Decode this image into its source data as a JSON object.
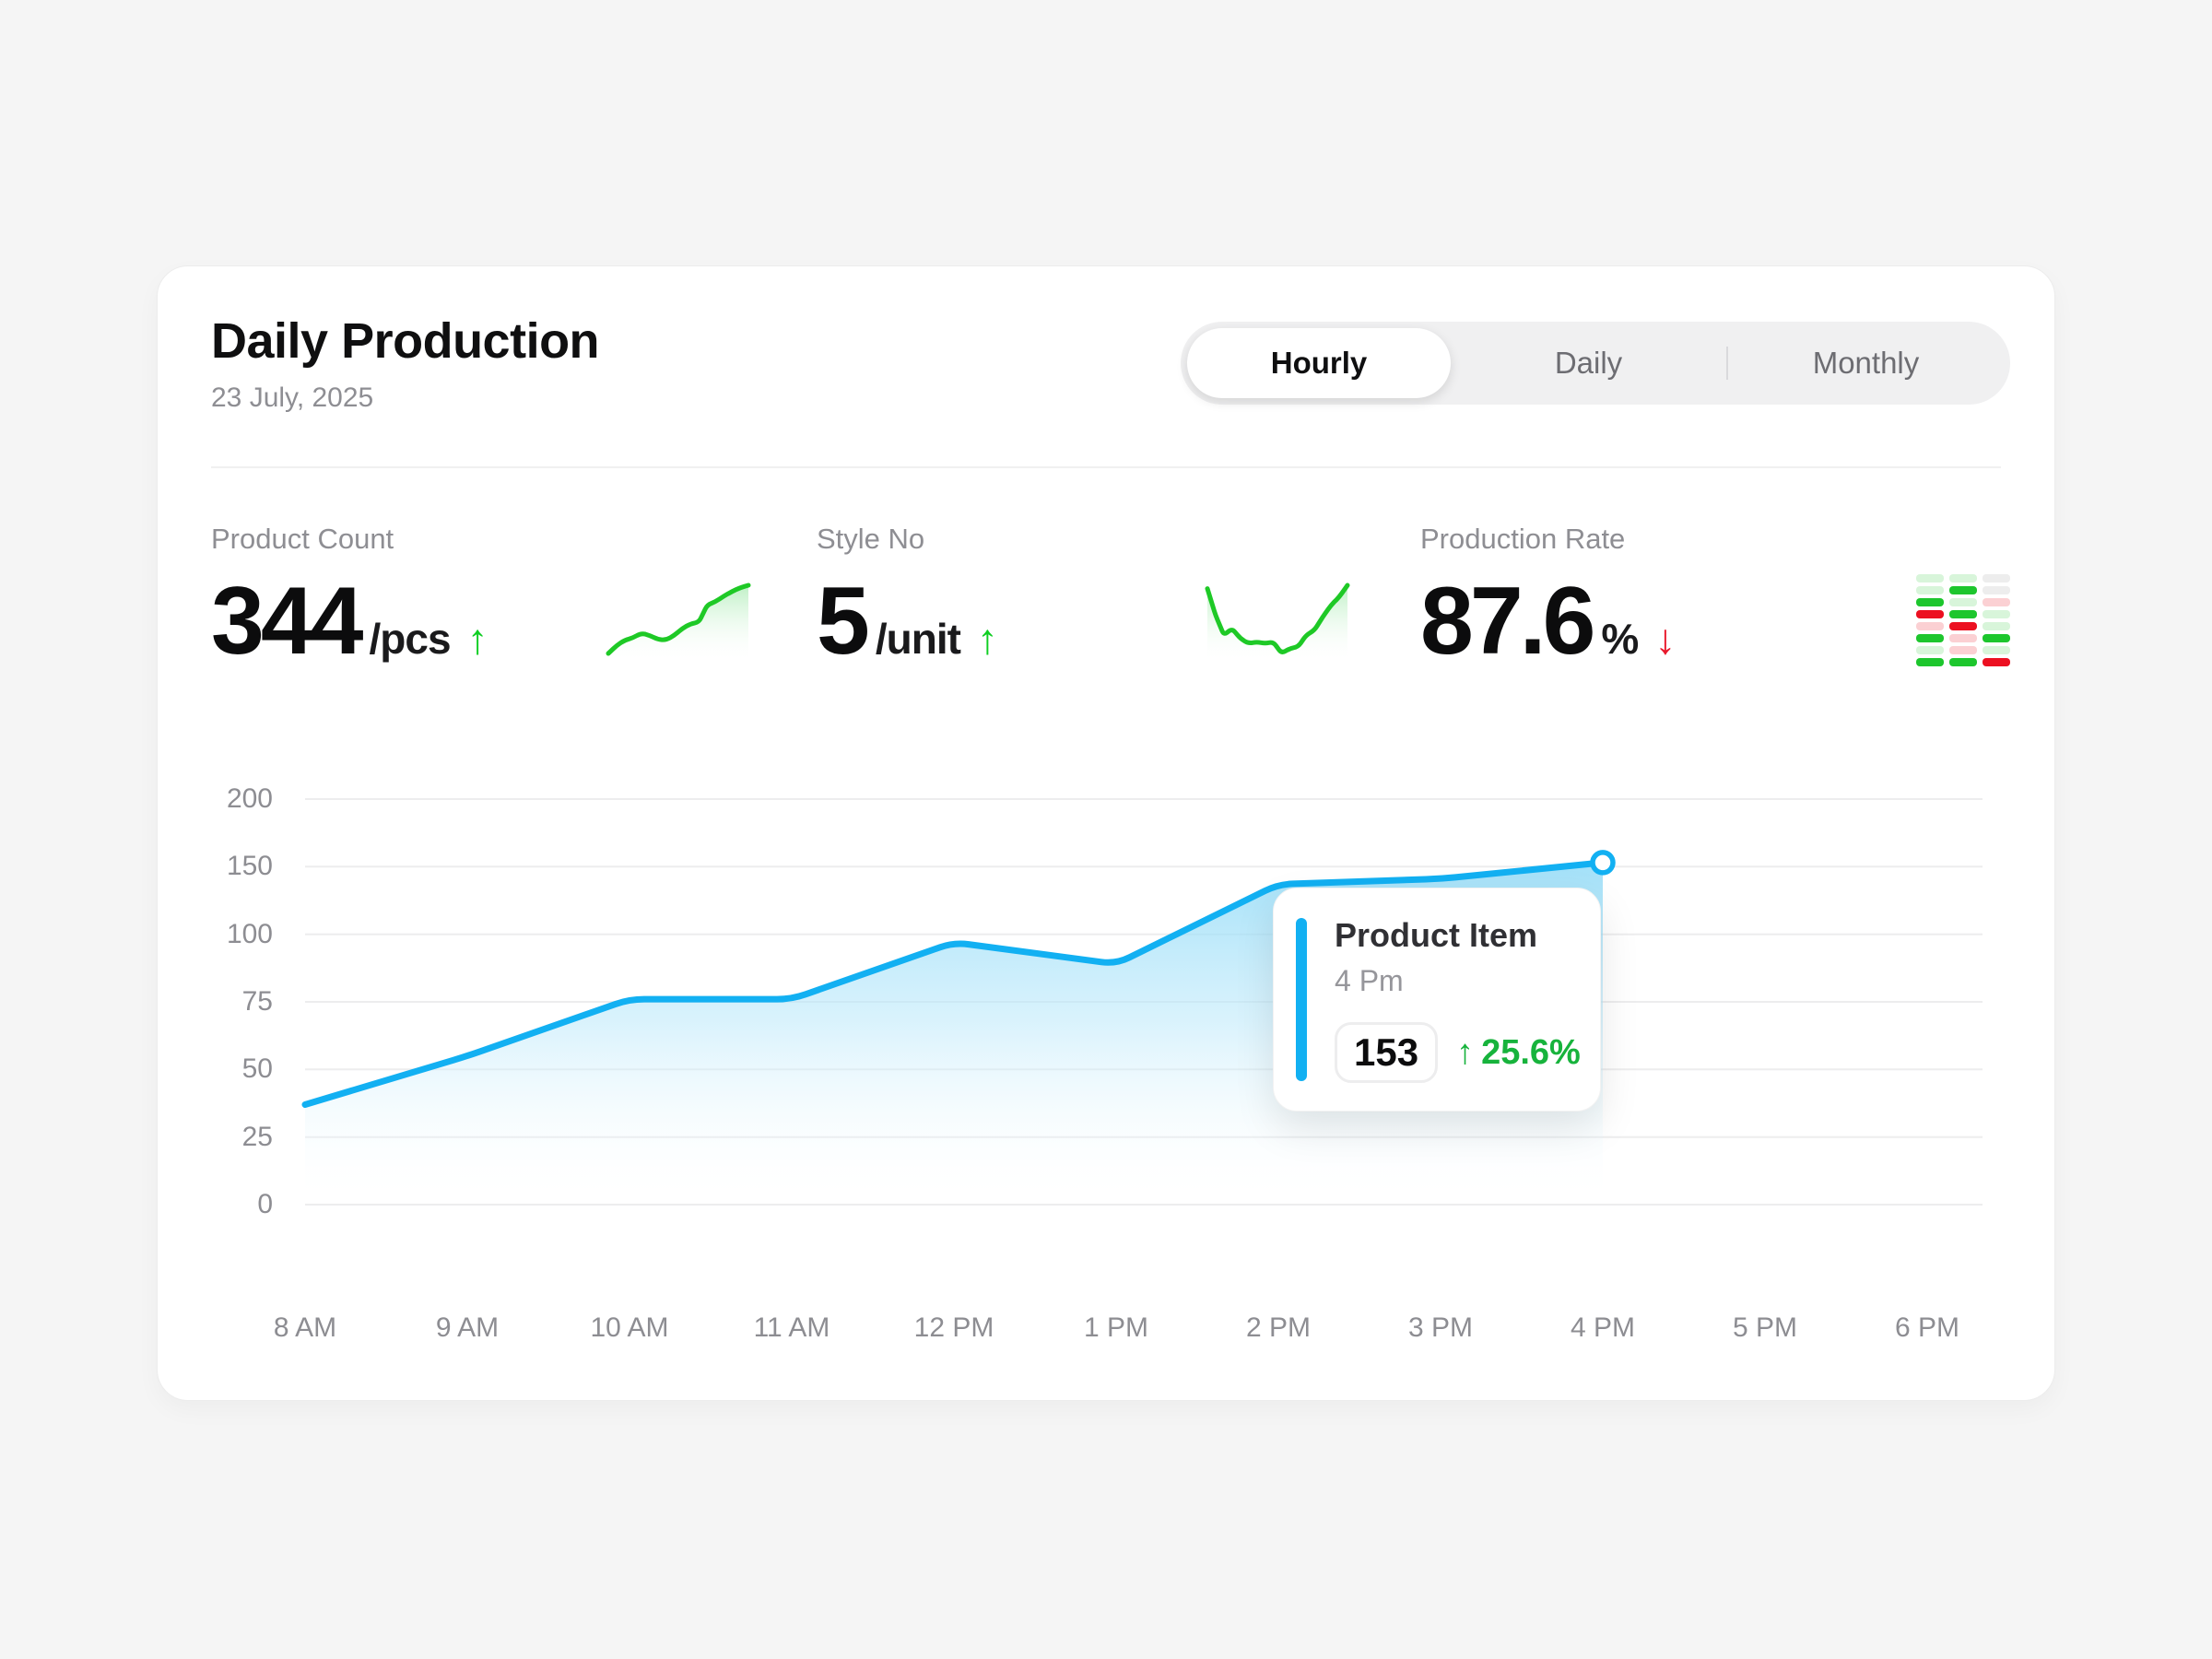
{
  "header": {
    "title": "Daily Production",
    "date": "23 July, 2025"
  },
  "tabs": [
    {
      "label": "Hourly",
      "active": true
    },
    {
      "label": "Daily",
      "active": false
    },
    {
      "label": "Monthly",
      "active": false
    }
  ],
  "stats": [
    {
      "label": "Product Count",
      "value": "344",
      "unit": "/pcs",
      "trend": "up",
      "trend_glyph": "↑"
    },
    {
      "label": "Style No",
      "value": "5",
      "unit": "/unit",
      "trend": "up",
      "trend_glyph": "↑"
    },
    {
      "label": "Production Rate",
      "value": "87.6",
      "unit": "%",
      "trend": "down",
      "trend_glyph": "↓"
    }
  ],
  "tooltip": {
    "title": "Product Item",
    "time": "4 Pm",
    "value": "153",
    "arrow_glyph": "↑",
    "change": "25.6%"
  },
  "colors": {
    "accent_blue": "#12b0f2",
    "area_fill_top": "#7fd5f6",
    "spark_green": "#1ec926",
    "trend_up_green": "#0fce22",
    "trend_down_red": "#e8192c",
    "tooltip_change_green": "#17b33c",
    "grid_line": "#ededee",
    "axis_label_gray": "#8d8d92",
    "muted_text_gray": "#8e8e93"
  },
  "chart_data": [
    {
      "id": "hourly_production_area",
      "type": "area",
      "title": "Daily Production (Hourly)",
      "categories": [
        "8 AM",
        "9 AM",
        "10 AM",
        "11 AM",
        "12 PM",
        "1 PM",
        "2 PM",
        "3 PM",
        "4 PM",
        "5 PM",
        "6 PM"
      ],
      "values": [
        37,
        55,
        76,
        76,
        97,
        89,
        137,
        141,
        153,
        null,
        null
      ],
      "y_ticks": [
        0,
        25,
        50,
        75,
        100,
        150,
        200
      ],
      "ylim": [
        0,
        200
      ],
      "grid": "horizontal",
      "legend": "none",
      "line_color": "#12b0f2",
      "marker": {
        "category": "4 PM",
        "value": 153
      },
      "highlight": {
        "label": "Product Item",
        "time": "4 Pm",
        "value": 153,
        "change_pct": 25.6,
        "direction": "up"
      }
    },
    {
      "id": "product_count_sparkline",
      "type": "line",
      "title": "Product Count trend",
      "values": [
        8,
        18,
        25,
        28,
        34,
        31,
        26,
        25,
        31,
        40,
        46,
        48,
        70,
        74,
        81,
        87,
        92,
        95
      ],
      "color": "#1ec926"
    },
    {
      "id": "style_no_sparkline",
      "type": "line",
      "title": "Style No trend",
      "values": [
        80,
        64,
        52,
        56,
        50,
        47,
        48,
        47,
        48,
        41,
        44,
        45,
        52,
        55,
        63,
        70,
        75,
        82
      ],
      "color": "#1ec926"
    },
    {
      "id": "production_rate_heatmap",
      "type": "heatmap",
      "title": "Production Rate status grid",
      "columns": 3,
      "rows": 8,
      "cells": [
        [
          "lightgreen",
          "lightgreen",
          "gray"
        ],
        [
          "lightgreen",
          "green",
          "gray"
        ],
        [
          "green",
          "lightgreen",
          "pink"
        ],
        [
          "red",
          "green",
          "lightgreen"
        ],
        [
          "pink",
          "red",
          "lightgreen"
        ],
        [
          "green",
          "pink",
          "green"
        ],
        [
          "lightgreen",
          "pink",
          "lightgreen"
        ],
        [
          "green",
          "green",
          "red"
        ]
      ],
      "palette": {
        "green": "#1dc62d",
        "lightgreen": "#d8f5da",
        "pink": "#fbd0d3",
        "red": "#ec1021",
        "gray": "#ededed"
      }
    }
  ]
}
